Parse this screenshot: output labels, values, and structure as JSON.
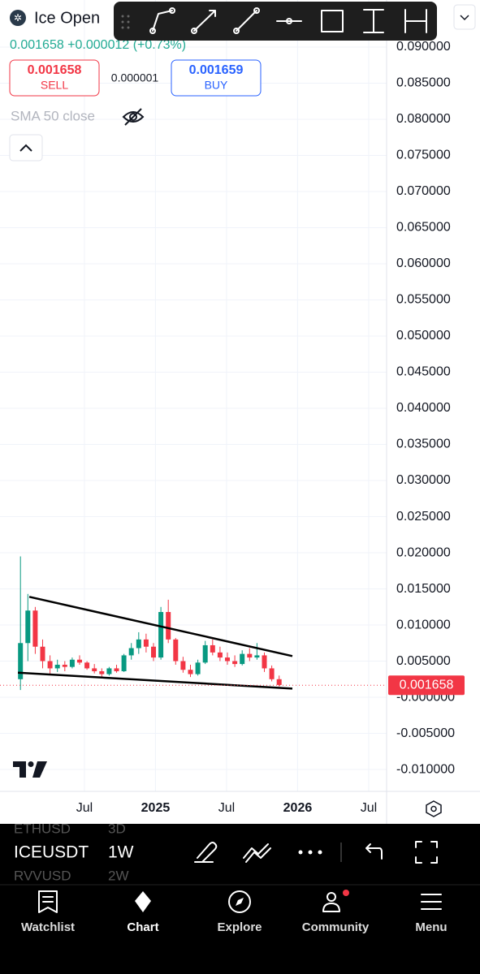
{
  "header": {
    "symbol": "Ice Open",
    "price_change": "0.001658 +0.000012 (+0.73%)"
  },
  "trade": {
    "sell_price": "0.001658",
    "sell_label": "SELL",
    "spread": "0.000001",
    "buy_price": "0.001659",
    "buy_label": "BUY"
  },
  "indicator": "SMA 50 close",
  "chart_data": {
    "type": "candlestick",
    "x": [
      2024.05,
      2024.102,
      2024.154,
      2024.206,
      2024.258,
      2024.31,
      2024.362,
      2024.414,
      2024.466,
      2024.518,
      2024.57,
      2024.622,
      2024.674,
      2024.726,
      2024.778,
      2024.83,
      2024.882,
      2024.934,
      2024.986,
      2025.038,
      2025.09,
      2025.142,
      2025.194,
      2025.246,
      2025.298,
      2025.35,
      2025.402,
      2025.454,
      2025.506,
      2025.558,
      2025.61,
      2025.662,
      2025.714,
      2025.766,
      2025.818,
      2025.87
    ],
    "open": [
      0.0025,
      0.0075,
      0.012,
      0.007,
      0.005,
      0.004,
      0.0045,
      0.0042,
      0.0052,
      0.0048,
      0.004,
      0.0036,
      0.0032,
      0.004,
      0.0036,
      0.0058,
      0.0068,
      0.008,
      0.007,
      0.0055,
      0.0118,
      0.008,
      0.005,
      0.0038,
      0.0032,
      0.0048,
      0.0072,
      0.0062,
      0.0055,
      0.005,
      0.0046,
      0.006,
      0.0055,
      0.0058,
      0.004,
      0.0025
    ],
    "high": [
      0.0195,
      0.0143,
      0.0125,
      0.008,
      0.0058,
      0.0052,
      0.005,
      0.0055,
      0.0058,
      0.005,
      0.0046,
      0.004,
      0.0042,
      0.0045,
      0.006,
      0.0075,
      0.009,
      0.0088,
      0.0075,
      0.0125,
      0.0135,
      0.0082,
      0.0056,
      0.0045,
      0.0052,
      0.0078,
      0.008,
      0.007,
      0.0062,
      0.0058,
      0.0065,
      0.0068,
      0.0075,
      0.0062,
      0.0044,
      0.003
    ],
    "low": [
      0.001,
      0.005,
      0.006,
      0.004,
      0.0032,
      0.0035,
      0.0036,
      0.004,
      0.0045,
      0.0038,
      0.0033,
      0.0028,
      0.003,
      0.0034,
      0.0035,
      0.0052,
      0.006,
      0.0062,
      0.005,
      0.0052,
      0.0075,
      0.0045,
      0.0034,
      0.0028,
      0.003,
      0.0046,
      0.0058,
      0.005,
      0.0045,
      0.0042,
      0.0044,
      0.005,
      0.0052,
      0.0035,
      0.0022,
      0.0015
    ],
    "close": [
      0.0075,
      0.012,
      0.007,
      0.005,
      0.004,
      0.0045,
      0.0042,
      0.0052,
      0.0048,
      0.004,
      0.0036,
      0.0032,
      0.004,
      0.0036,
      0.0058,
      0.0068,
      0.008,
      0.007,
      0.0055,
      0.0118,
      0.008,
      0.005,
      0.0038,
      0.0032,
      0.0048,
      0.0072,
      0.0062,
      0.0055,
      0.005,
      0.0046,
      0.006,
      0.0055,
      0.0058,
      0.004,
      0.0025,
      0.0017
    ],
    "up_color": "#089981",
    "down_color": "#f23645",
    "xlim": [
      2023.906,
      2026.626
    ],
    "xticks": [
      {
        "value": 2024.5,
        "label": "Jul"
      },
      {
        "value": 2025,
        "label": "2025"
      },
      {
        "value": 2025.5,
        "label": "Jul"
      },
      {
        "value": 2026,
        "label": "2026"
      },
      {
        "value": 2026.5,
        "label": "Jul"
      }
    ],
    "ylim": [
      -0.01303,
      0.09652
    ],
    "yticks": [
      {
        "value": 0.09,
        "label": "0.090000"
      },
      {
        "value": 0.085,
        "label": "0.085000"
      },
      {
        "value": 0.08,
        "label": "0.080000"
      },
      {
        "value": 0.075,
        "label": "0.075000"
      },
      {
        "value": 0.07,
        "label": "0.070000"
      },
      {
        "value": 0.065,
        "label": "0.065000"
      },
      {
        "value": 0.06,
        "label": "0.060000"
      },
      {
        "value": 0.055,
        "label": "0.055000"
      },
      {
        "value": 0.05,
        "label": "0.050000"
      },
      {
        "value": 0.045,
        "label": "0.045000"
      },
      {
        "value": 0.04,
        "label": "0.040000"
      },
      {
        "value": 0.035,
        "label": "0.035000"
      },
      {
        "value": 0.03,
        "label": "0.030000"
      },
      {
        "value": 0.025,
        "label": "0.025000"
      },
      {
        "value": 0.02,
        "label": "0.020000"
      },
      {
        "value": 0.015,
        "label": "0.015000"
      },
      {
        "value": 0.01,
        "label": "0.010000"
      },
      {
        "value": 0.005,
        "label": "0.005000"
      },
      {
        "value": 0,
        "label": "-0.000000"
      },
      {
        "value": -0.005,
        "label": "-0.005000"
      },
      {
        "value": -0.01,
        "label": "-0.010000"
      }
    ],
    "grid": true,
    "last_price": 0.001658,
    "last_price_color": "#f23645",
    "trendlines": [
      {
        "x": [
          2024.112,
          2025.963
        ],
        "y": [
          0.0139,
          0.0057
        ]
      },
      {
        "x": [
          2024.032,
          2025.963
        ],
        "y": [
          0.0034,
          0.0012
        ]
      }
    ],
    "trendline_color": "#000000"
  },
  "toolbar": {
    "symbol": "ICEUSDT",
    "interval": "1W",
    "recent": [
      {
        "symbol": "ETHUSD",
        "interval": "3D"
      },
      {
        "symbol": "RVVUSD",
        "interval": "2W"
      }
    ]
  },
  "nav": [
    "Watchlist",
    "Chart",
    "Explore",
    "Community",
    "Menu"
  ]
}
